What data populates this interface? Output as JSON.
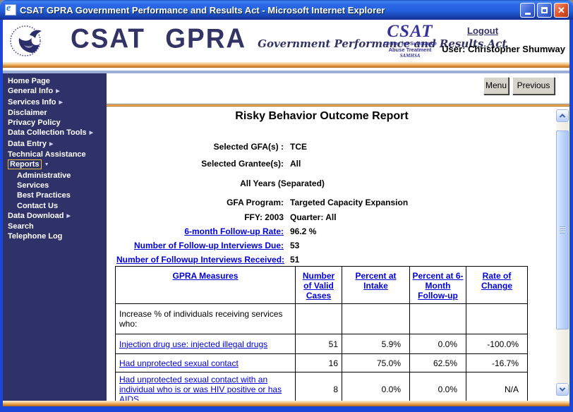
{
  "window": {
    "title": "CSAT GPRA Government Performance and Results Act - Microsoft Internet Explorer"
  },
  "header": {
    "brand": "CSAT GPRA",
    "tagline": "Government Performance and Results Act",
    "agency": {
      "acronym": "CSAT",
      "line1": "Center for Substance",
      "line2": "Abuse Treatment",
      "line3": "SAMHSA"
    },
    "logout": "Logout",
    "user": "User: Christopher Shumway"
  },
  "toolbar": {
    "menu": "Menu",
    "previous": "Previous"
  },
  "sidebar": {
    "items": [
      {
        "label": "Home Page"
      },
      {
        "label": "General Info",
        "arrow": "right"
      },
      {
        "label": "Services Info",
        "arrow": "right"
      },
      {
        "label": "Disclaimer"
      },
      {
        "label": "Privacy Policy"
      },
      {
        "label": "Data Collection Tools",
        "arrow": "right"
      },
      {
        "label": "Data Entry",
        "arrow": "right"
      },
      {
        "label": "Technical Assistance"
      },
      {
        "label": "Reports",
        "arrow": "down",
        "selected": true
      },
      {
        "label": "Administrative",
        "indent": true
      },
      {
        "label": "Services",
        "indent": true
      },
      {
        "label": "Best Practices",
        "indent": true
      },
      {
        "label": "Contact Us",
        "indent": true
      },
      {
        "label": "Data Download",
        "arrow": "right"
      },
      {
        "label": "Search"
      },
      {
        "label": "Telephone Log"
      }
    ]
  },
  "report": {
    "title": "Risky Behavior Outcome Report",
    "params": [
      {
        "label": "Selected GFA(s) :",
        "value": "TCE"
      },
      {
        "label": "Selected Grantee(s):",
        "value": "All"
      },
      {
        "label": "All Years (Separated)",
        "value": "",
        "center": true
      },
      {
        "label": "GFA Program:",
        "value": "Targeted Capacity Expansion"
      },
      {
        "label": "FFY: 2003",
        "value": "Quarter: All"
      },
      {
        "label": "6-month Follow-up Rate:",
        "value": "96.2 %",
        "link": true
      },
      {
        "label": "Number of Follow-up Interviews Due:",
        "value": "53",
        "link": true
      },
      {
        "label": "Number of Followup Interviews Received:",
        "value": "51",
        "link": true
      }
    ],
    "table": {
      "headers": [
        "GPRA Measures",
        "Number of Valid Cases",
        "Percent at Intake",
        "Percent at 6-Month Follow-up",
        "Rate of Change"
      ],
      "rows": [
        {
          "measure": "Increase % of individuals receiving services who:",
          "link": false,
          "values": [
            "",
            "",
            "",
            ""
          ]
        },
        {
          "measure": "Injection drug use: injected illegal drugs",
          "link": true,
          "values": [
            "51",
            "5.9%",
            "0.0%",
            "-100.0%"
          ]
        },
        {
          "measure": "Had unprotected sexual contact",
          "link": true,
          "values": [
            "16",
            "75.0%",
            "62.5%",
            "-16.7%"
          ]
        },
        {
          "measure": "Had unprotected sexual contact with an individual who is or was HIV positive or has AIDS",
          "link": true,
          "values": [
            "8",
            "0.0%",
            "0.0%",
            "N/A"
          ]
        }
      ]
    }
  },
  "colors": {
    "titlebar": "#2E6AE8",
    "window_border": "#1B47D6",
    "sidebar_bg": "#2F3269",
    "accent_orange": "#E8963C",
    "link_blue": "#0000DD",
    "brand_navy": "#333366",
    "strip_blue": "#9DAFD9"
  }
}
